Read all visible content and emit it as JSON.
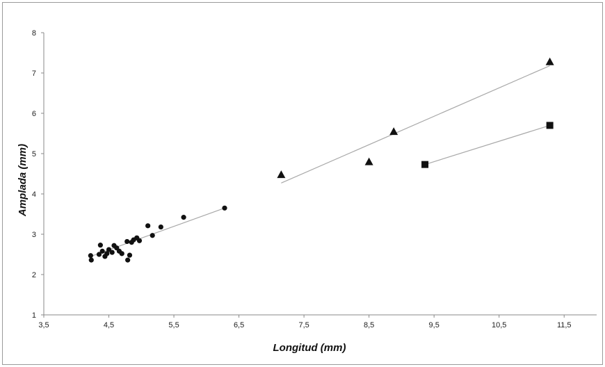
{
  "chart_data": {
    "type": "scatter",
    "xlabel": "Longitud (mm)",
    "ylabel": "Amplada (mm)",
    "xlim": [
      3.5,
      12.0
    ],
    "ylim": [
      1,
      8
    ],
    "x_ticks": [
      "3,5",
      "4,5",
      "5,5",
      "6,5",
      "7,5",
      "8,5",
      "9,5",
      "10,5",
      "11,5"
    ],
    "x_tick_values": [
      3.5,
      4.5,
      5.5,
      6.5,
      7.5,
      8.5,
      9.5,
      10.5,
      11.5
    ],
    "y_ticks": [
      "1",
      "2",
      "3",
      "4",
      "5",
      "6",
      "7",
      "8"
    ],
    "y_tick_values": [
      1,
      2,
      3,
      4,
      5,
      6,
      7,
      8
    ],
    "grid": false,
    "legend": "none",
    "series": [
      {
        "marker": "circle",
        "points": [
          [
            4.22,
            2.47
          ],
          [
            4.23,
            2.36
          ],
          [
            4.35,
            2.5
          ],
          [
            4.37,
            2.73
          ],
          [
            4.4,
            2.58
          ],
          [
            4.44,
            2.45
          ],
          [
            4.47,
            2.52
          ],
          [
            4.5,
            2.62
          ],
          [
            4.55,
            2.55
          ],
          [
            4.58,
            2.72
          ],
          [
            4.62,
            2.66
          ],
          [
            4.66,
            2.58
          ],
          [
            4.7,
            2.52
          ],
          [
            4.78,
            2.82
          ],
          [
            4.79,
            2.36
          ],
          [
            4.82,
            2.48
          ],
          [
            4.85,
            2.8
          ],
          [
            4.88,
            2.86
          ],
          [
            4.93,
            2.91
          ],
          [
            4.97,
            2.84
          ],
          [
            5.1,
            3.21
          ],
          [
            5.17,
            2.97
          ],
          [
            5.3,
            3.18
          ],
          [
            5.65,
            3.42
          ],
          [
            6.28,
            3.65
          ]
        ],
        "trendline": [
          [
            4.22,
            2.45
          ],
          [
            6.28,
            3.65
          ]
        ]
      },
      {
        "marker": "triangle",
        "points": [
          [
            7.15,
            4.48
          ],
          [
            8.5,
            4.8
          ],
          [
            8.88,
            5.55
          ],
          [
            11.28,
            7.28
          ]
        ],
        "trendline": [
          [
            7.15,
            4.27
          ],
          [
            11.28,
            7.18
          ]
        ]
      },
      {
        "marker": "square",
        "points": [
          [
            9.36,
            4.73
          ],
          [
            11.28,
            5.7
          ]
        ],
        "trendline": [
          [
            9.36,
            4.73
          ],
          [
            11.28,
            5.7
          ]
        ]
      }
    ]
  }
}
